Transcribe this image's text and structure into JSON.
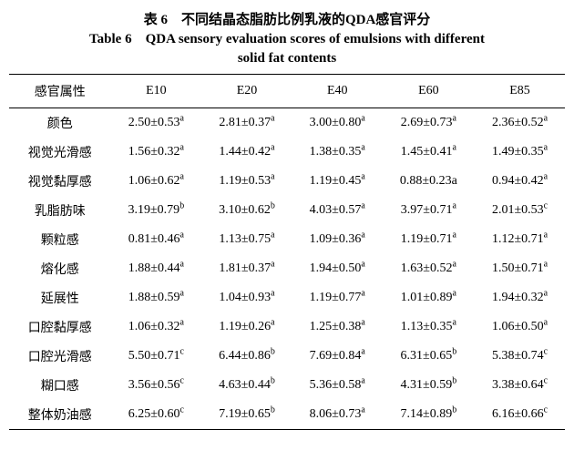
{
  "title_cn": "表 6　不同结晶态脂肪比例乳液的QDA感官评分",
  "title_en_prefix": "Table 6　QDA sensory evaluation scores of emulsions with different",
  "title_en_line2": "solid fat contents",
  "table": {
    "columns": [
      "感官属性",
      "E10",
      "E20",
      "E40",
      "E60",
      "E85"
    ],
    "rows": [
      {
        "label": "颜色",
        "cells": [
          {
            "v": "2.50±0.53",
            "s": "a"
          },
          {
            "v": "2.81±0.37",
            "s": "a"
          },
          {
            "v": "3.00±0.80",
            "s": "a"
          },
          {
            "v": "2.69±0.73",
            "s": "a"
          },
          {
            "v": "2.36±0.52",
            "s": "a"
          }
        ]
      },
      {
        "label": "视觉光滑感",
        "cells": [
          {
            "v": "1.56±0.32",
            "s": "a"
          },
          {
            "v": "1.44±0.42",
            "s": "a"
          },
          {
            "v": "1.38±0.35",
            "s": "a"
          },
          {
            "v": "1.45±0.41",
            "s": "a"
          },
          {
            "v": "1.49±0.35",
            "s": "a"
          }
        ]
      },
      {
        "label": "视觉黏厚感",
        "cells": [
          {
            "v": "1.06±0.62",
            "s": "a"
          },
          {
            "v": "1.19±0.53",
            "s": "a"
          },
          {
            "v": "1.19±0.45",
            "s": "a"
          },
          {
            "v": "0.88±0.23",
            "s": "a",
            "noSup": true,
            "suffix": "a"
          },
          {
            "v": "0.94±0.42",
            "s": "a"
          }
        ]
      },
      {
        "label": "乳脂肪味",
        "cells": [
          {
            "v": "3.19±0.79",
            "s": "b"
          },
          {
            "v": "3.10±0.62",
            "s": "b"
          },
          {
            "v": "4.03±0.57",
            "s": "a"
          },
          {
            "v": "3.97±0.71",
            "s": "a"
          },
          {
            "v": "2.01±0.53",
            "s": "c"
          }
        ]
      },
      {
        "label": "颗粒感",
        "cells": [
          {
            "v": "0.81±0.46",
            "s": "a"
          },
          {
            "v": "1.13±0.75",
            "s": "a"
          },
          {
            "v": "1.09±0.36",
            "s": "a"
          },
          {
            "v": "1.19±0.71",
            "s": "a"
          },
          {
            "v": "1.12±0.71",
            "s": "a"
          }
        ]
      },
      {
        "label": "熔化感",
        "cells": [
          {
            "v": "1.88±0.44",
            "s": "a"
          },
          {
            "v": "1.81±0.37",
            "s": "a"
          },
          {
            "v": "1.94±0.50",
            "s": "a"
          },
          {
            "v": "1.63±0.52",
            "s": "a"
          },
          {
            "v": "1.50±0.71",
            "s": "a"
          }
        ]
      },
      {
        "label": "延展性",
        "cells": [
          {
            "v": "1.88±0.59",
            "s": "a"
          },
          {
            "v": "1.04±0.93",
            "s": "a"
          },
          {
            "v": "1.19±0.77",
            "s": "a"
          },
          {
            "v": "1.01±0.89",
            "s": "a"
          },
          {
            "v": "1.94±0.32",
            "s": "a"
          }
        ]
      },
      {
        "label": "口腔黏厚感",
        "cells": [
          {
            "v": "1.06±0.32",
            "s": "a"
          },
          {
            "v": "1.19±0.26",
            "s": "a"
          },
          {
            "v": "1.25±0.38",
            "s": "a"
          },
          {
            "v": "1.13±0.35",
            "s": "a"
          },
          {
            "v": "1.06±0.50",
            "s": "a"
          }
        ]
      },
      {
        "label": "口腔光滑感",
        "cells": [
          {
            "v": "5.50±0.71",
            "s": "c"
          },
          {
            "v": "6.44±0.86",
            "s": "b"
          },
          {
            "v": "7.69±0.84",
            "s": "a"
          },
          {
            "v": "6.31±0.65",
            "s": "b"
          },
          {
            "v": "5.38±0.74",
            "s": "c"
          }
        ]
      },
      {
        "label": "糊口感",
        "cells": [
          {
            "v": "3.56±0.56",
            "s": "c"
          },
          {
            "v": "4.63±0.44",
            "s": "b"
          },
          {
            "v": "5.36±0.58",
            "s": "a"
          },
          {
            "v": "4.31±0.59",
            "s": "b"
          },
          {
            "v": "3.38±0.64",
            "s": "c"
          }
        ]
      },
      {
        "label": "整体奶油感",
        "cells": [
          {
            "v": "6.25±0.60",
            "s": "c"
          },
          {
            "v": "7.19±0.65",
            "s": "b"
          },
          {
            "v": "8.06±0.73",
            "s": "a"
          },
          {
            "v": "7.14±0.89",
            "s": "b"
          },
          {
            "v": "6.16±0.66",
            "s": "c"
          }
        ]
      }
    ]
  }
}
